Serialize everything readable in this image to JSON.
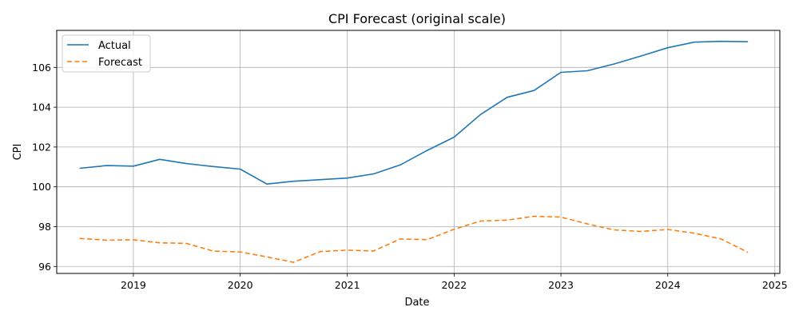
{
  "chart_data": {
    "type": "line",
    "title": "CPI Forecast (original scale)",
    "xlabel": "Date",
    "ylabel": "CPI",
    "x": [
      "2018-07-01",
      "2018-10-01",
      "2019-01-01",
      "2019-04-01",
      "2019-07-01",
      "2019-10-01",
      "2020-01-01",
      "2020-04-01",
      "2020-07-01",
      "2020-10-01",
      "2021-01-01",
      "2021-04-01",
      "2021-07-01",
      "2021-10-01",
      "2022-01-01",
      "2022-04-01",
      "2022-07-01",
      "2022-10-01",
      "2023-01-01",
      "2023-04-01",
      "2023-07-01",
      "2023-10-01",
      "2024-01-01",
      "2024-04-01",
      "2024-07-01",
      "2024-10-01"
    ],
    "series": [
      {
        "name": "Actual",
        "color": "#1f77b4",
        "style": "solid",
        "values": [
          100.93,
          101.07,
          101.04,
          101.38,
          101.17,
          101.02,
          100.89,
          100.14,
          100.28,
          100.36,
          100.44,
          100.65,
          101.1,
          101.83,
          102.5,
          103.63,
          104.5,
          104.84,
          105.75,
          105.83,
          106.17,
          106.57,
          106.99,
          107.27,
          107.31,
          107.29
        ]
      },
      {
        "name": "Forecast",
        "color": "#ff7f0e",
        "style": "dashed",
        "values": [
          97.41,
          97.32,
          97.34,
          97.19,
          97.16,
          96.77,
          96.73,
          96.48,
          96.21,
          96.75,
          96.82,
          96.78,
          97.38,
          97.35,
          97.87,
          98.28,
          98.33,
          98.52,
          98.48,
          98.14,
          97.84,
          97.76,
          97.86,
          97.67,
          97.38,
          96.71
        ]
      }
    ],
    "x_ticks": [
      "2019",
      "2020",
      "2021",
      "2022",
      "2023",
      "2024",
      "2025"
    ],
    "y_ticks": [
      96,
      98,
      100,
      102,
      104,
      106
    ],
    "xlim": [
      "2018-04-14",
      "2025-01-18"
    ],
    "ylim": [
      95.65,
      107.86
    ],
    "grid": true,
    "legend": "upper-left"
  }
}
